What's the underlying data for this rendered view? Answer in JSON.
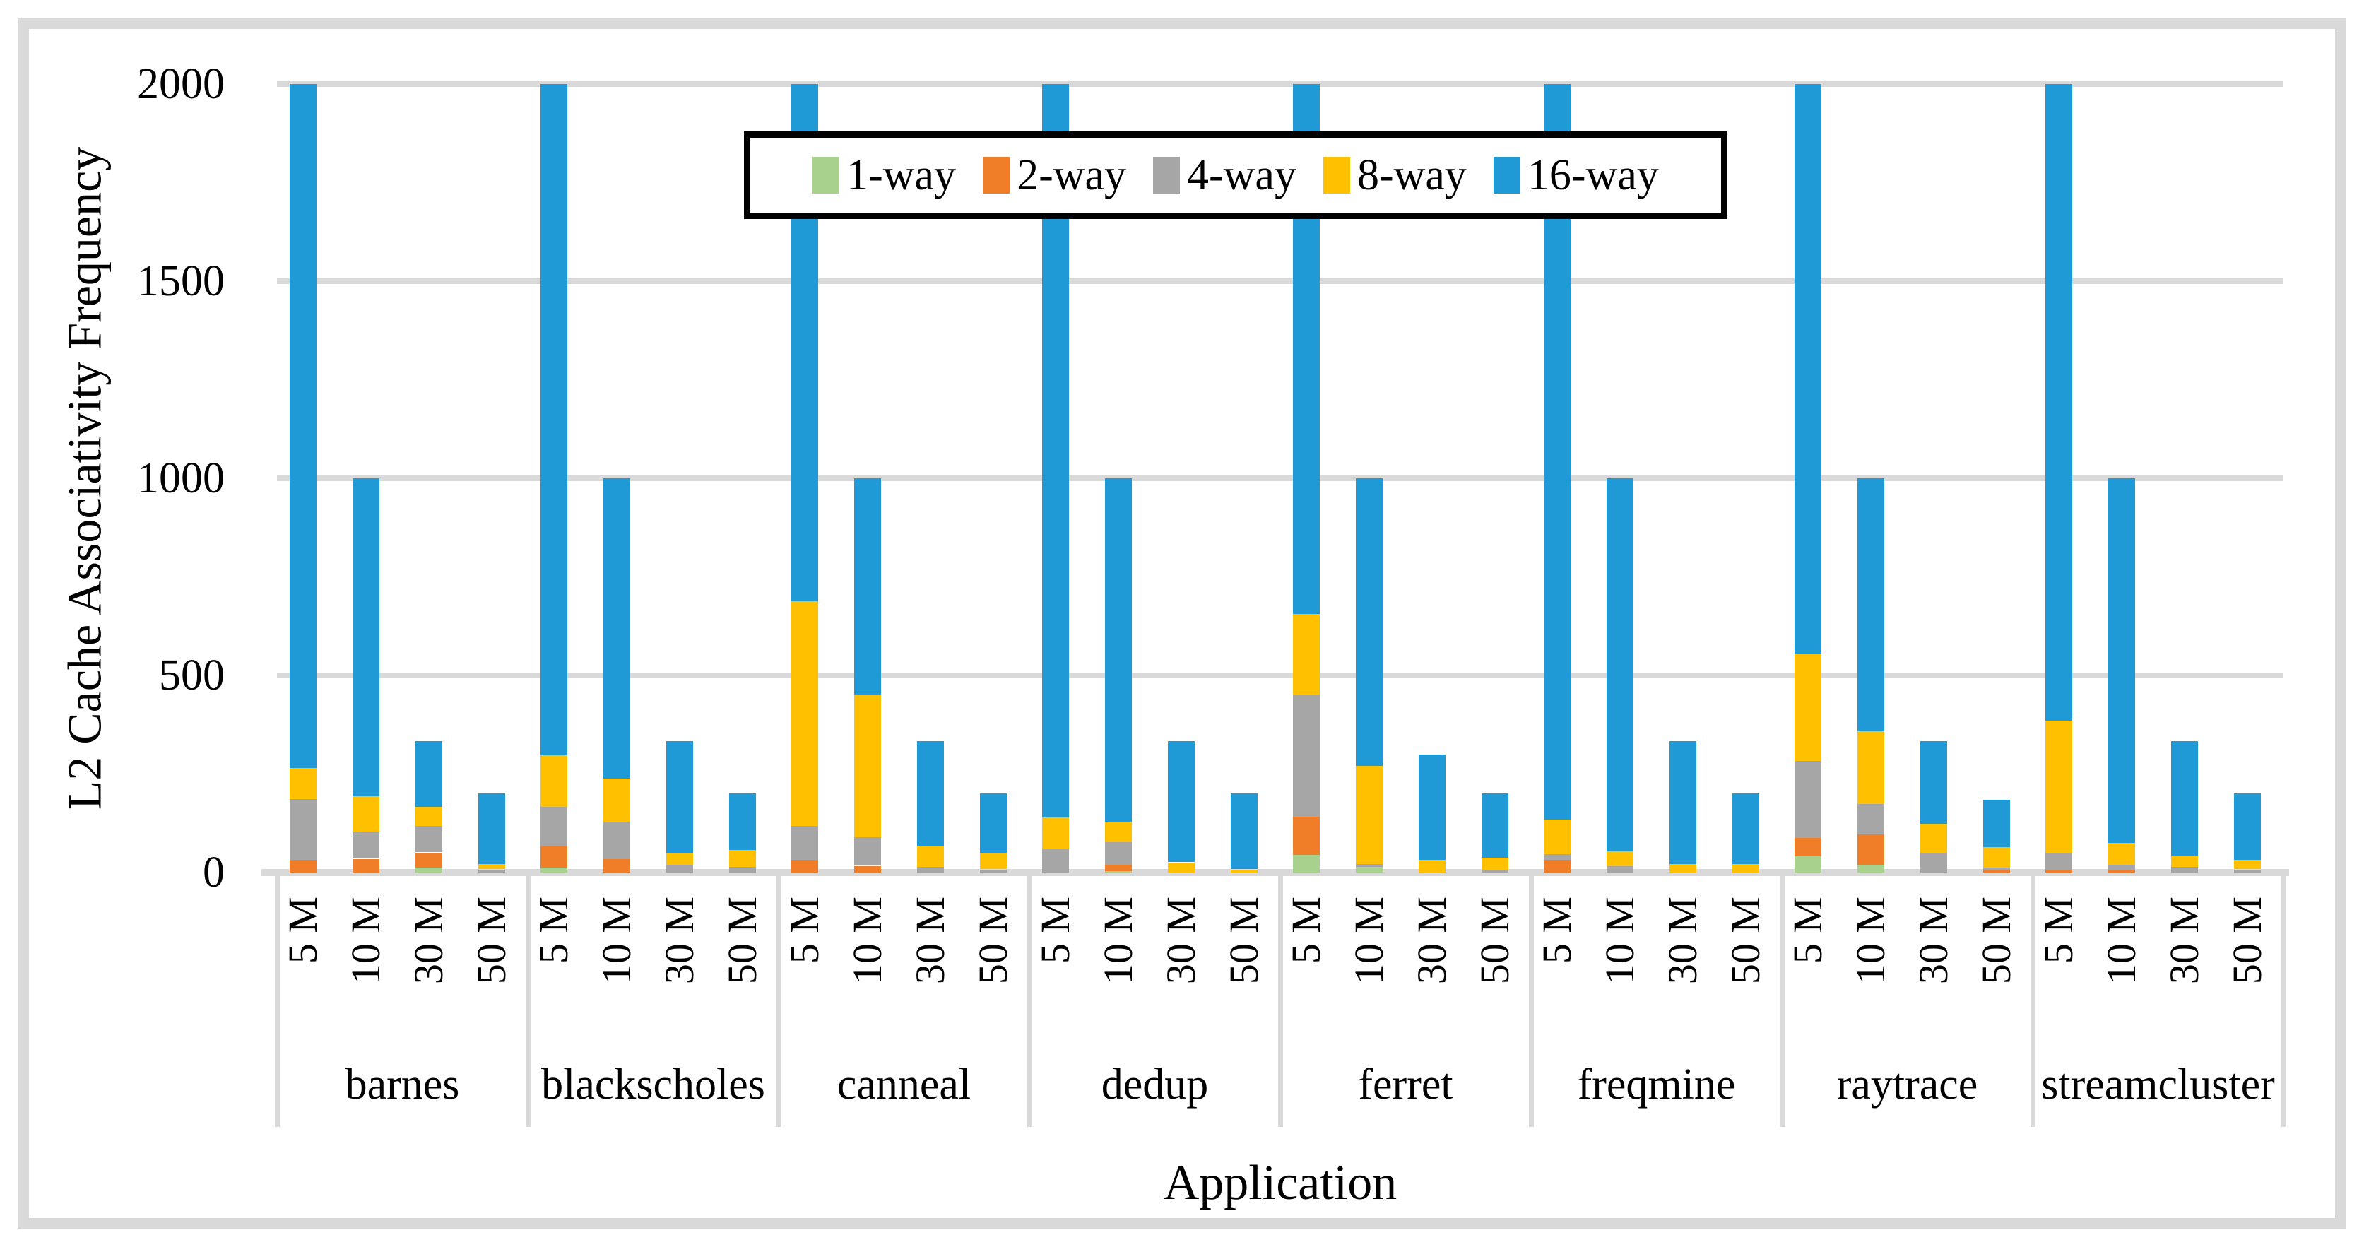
{
  "y_axis": {
    "title": "L2 Cache Associativity Frequency",
    "ticks": [
      0,
      500,
      1000,
      1500,
      2000
    ],
    "max": 2000
  },
  "x_axis": {
    "title": "Application",
    "sub_tick_labels": [
      "5 M",
      "10 M",
      "30 M",
      "50 M"
    ]
  },
  "legend": {
    "items": [
      {
        "label": "1-way",
        "color": "#A9D18E"
      },
      {
        "label": "2-way",
        "color": "#F07D27"
      },
      {
        "label": "4-way",
        "color": "#A6A6A6"
      },
      {
        "label": "8-way",
        "color": "#FFC000"
      },
      {
        "label": "16-way",
        "color": "#1F9AD7"
      }
    ]
  },
  "style_colors": {
    "grid": "#D9D9D9",
    "frame": "#D9D9D9",
    "legend_border": "#000000",
    "text": "#000000"
  },
  "chart_data": {
    "type": "bar",
    "stacked": true,
    "title": "",
    "xlabel": "Application",
    "ylabel": "L2 Cache Associativity Frequency",
    "ylim": [
      0,
      2000
    ],
    "y_ticks": [
      0,
      500,
      1000,
      1500,
      2000
    ],
    "grid": true,
    "legend_position": "top-center",
    "series_names": [
      "1-way",
      "2-way",
      "4-way",
      "8-way",
      "16-way"
    ],
    "series_colors": [
      "#A9D18E",
      "#F07D27",
      "#A6A6A6",
      "#FFC000",
      "#1F9AD7"
    ],
    "sub_categories": [
      "5 M",
      "10 M",
      "30 M",
      "50 M"
    ],
    "groups": [
      {
        "name": "barnes",
        "bars": [
          [
            0,
            33,
            154,
            79,
            1734
          ],
          [
            0,
            35,
            68,
            90,
            807
          ],
          [
            13,
            38,
            68,
            47,
            167
          ],
          [
            0,
            0,
            8,
            14,
            178
          ]
        ]
      },
      {
        "name": "blackscholes",
        "bars": [
          [
            13,
            53,
            101,
            131,
            1702
          ],
          [
            0,
            35,
            94,
            110,
            761
          ],
          [
            0,
            0,
            20,
            28,
            285
          ],
          [
            0,
            0,
            15,
            43,
            142
          ]
        ]
      },
      {
        "name": "canneal",
        "bars": [
          [
            0,
            33,
            85,
            570,
            1312
          ],
          [
            0,
            17,
            73,
            361,
            549
          ],
          [
            0,
            0,
            14,
            52,
            267
          ],
          [
            0,
            0,
            8,
            42,
            150
          ]
        ]
      },
      {
        "name": "dedup",
        "bars": [
          [
            0,
            0,
            61,
            79,
            1860
          ],
          [
            4,
            15,
            58,
            52,
            871
          ],
          [
            0,
            0,
            0,
            26,
            307
          ],
          [
            0,
            0,
            0,
            8,
            192
          ]
        ]
      },
      {
        "name": "ferret",
        "bars": [
          [
            45,
            97,
            309,
            205,
            1344
          ],
          [
            14,
            0,
            7,
            249,
            730
          ],
          [
            0,
            0,
            0,
            32,
            268
          ],
          [
            0,
            0,
            8,
            29,
            163
          ]
        ]
      },
      {
        "name": "freqmine",
        "bars": [
          [
            0,
            33,
            14,
            88,
            1865
          ],
          [
            0,
            0,
            16,
            38,
            946
          ],
          [
            0,
            0,
            0,
            21,
            312
          ],
          [
            0,
            0,
            0,
            21,
            179
          ]
        ]
      },
      {
        "name": "raytrace",
        "bars": [
          [
            41,
            47,
            195,
            270,
            1447
          ],
          [
            20,
            76,
            78,
            185,
            641
          ],
          [
            0,
            0,
            50,
            74,
            209
          ],
          [
            0,
            5,
            7,
            52,
            121
          ]
        ]
      },
      {
        "name": "streamcluster",
        "bars": [
          [
            0,
            6,
            45,
            334,
            1615
          ],
          [
            0,
            6,
            14,
            56,
            924
          ],
          [
            0,
            0,
            15,
            28,
            290
          ],
          [
            0,
            0,
            8,
            24,
            168
          ]
        ]
      }
    ]
  }
}
